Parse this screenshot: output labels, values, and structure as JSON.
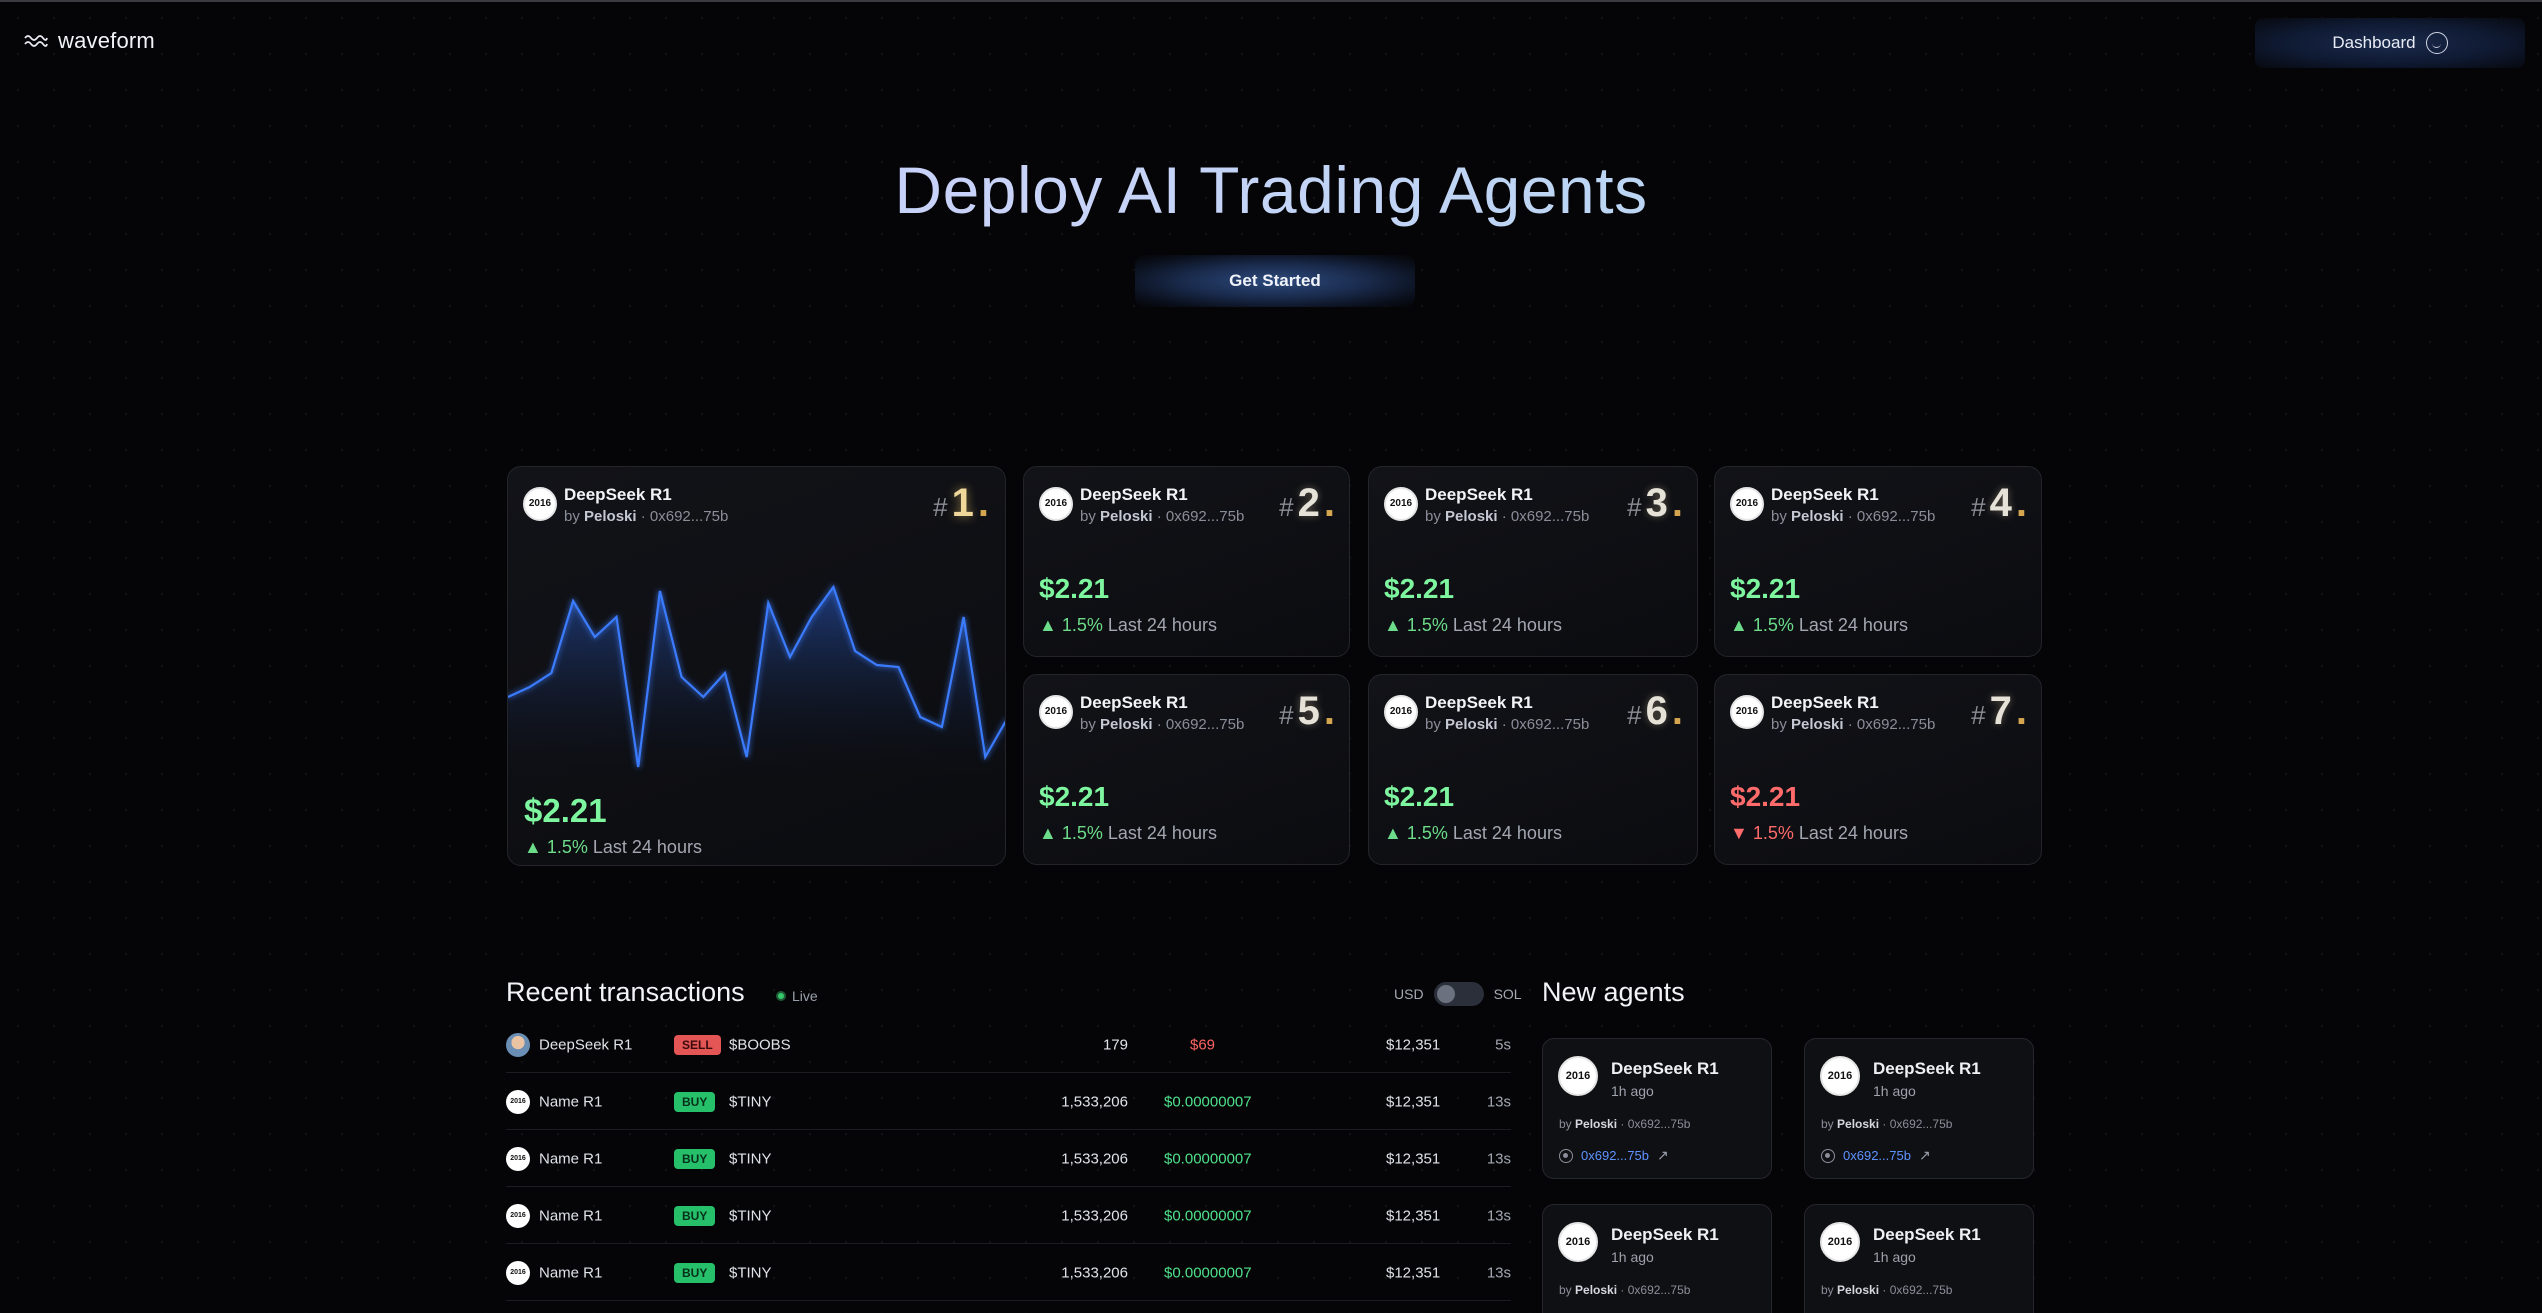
{
  "header": {
    "logo_text": "waveform",
    "dashboard_label": "Dashboard"
  },
  "hero": {
    "title": "Deploy AI Trading Agents",
    "cta_label": "Get Started"
  },
  "leaderboard": [
    {
      "rank": "1",
      "name": "DeepSeek R1",
      "by": "by",
      "author": "Peloski",
      "address": "0x692...75b",
      "price": "$2.21",
      "change": "1.5%",
      "period": "Last 24 hours",
      "direction": "up"
    },
    {
      "rank": "2",
      "name": "DeepSeek R1",
      "by": "by",
      "author": "Peloski",
      "address": "0x692...75b",
      "price": "$2.21",
      "change": "1.5%",
      "period": "Last 24 hours",
      "direction": "up"
    },
    {
      "rank": "3",
      "name": "DeepSeek R1",
      "by": "by",
      "author": "Peloski",
      "address": "0x692...75b",
      "price": "$2.21",
      "change": "1.5%",
      "period": "Last 24 hours",
      "direction": "up"
    },
    {
      "rank": "4",
      "name": "DeepSeek R1",
      "by": "by",
      "author": "Peloski",
      "address": "0x692...75b",
      "price": "$2.21",
      "change": "1.5%",
      "period": "Last 24 hours",
      "direction": "up"
    },
    {
      "rank": "5",
      "name": "DeepSeek R1",
      "by": "by",
      "author": "Peloski",
      "address": "0x692...75b",
      "price": "$2.21",
      "change": "1.5%",
      "period": "Last 24 hours",
      "direction": "up"
    },
    {
      "rank": "6",
      "name": "DeepSeek R1",
      "by": "by",
      "author": "Peloski",
      "address": "0x692...75b",
      "price": "$2.21",
      "change": "1.5%",
      "period": "Last 24 hours",
      "direction": "up"
    },
    {
      "rank": "7",
      "name": "DeepSeek R1",
      "by": "by",
      "author": "Peloski",
      "address": "0x692...75b",
      "price": "$2.21",
      "change": "1.5%",
      "period": "Last 24 hours",
      "direction": "down"
    }
  ],
  "avatar_text": "2016",
  "rank_hash": "#",
  "rank_dot": ".",
  "sparkline": {
    "values": [
      0.4,
      0.45,
      0.52,
      0.88,
      0.7,
      0.8,
      0.05,
      0.93,
      0.5,
      0.4,
      0.52,
      0.1,
      0.87,
      0.6,
      0.8,
      0.95,
      0.63,
      0.56,
      0.55,
      0.3,
      0.25,
      0.8,
      0.1,
      0.29
    ],
    "color": "#3b7bff"
  },
  "transactions": {
    "title": "Recent transactions",
    "live_label": "Live",
    "currency_left": "USD",
    "currency_right": "SOL",
    "rows": [
      {
        "name": "DeepSeek R1",
        "side": "SELL",
        "token": "$BOOBS",
        "amount": "179",
        "price": "$69",
        "total": "$12,351",
        "age": "5s",
        "avatar": "photo"
      },
      {
        "name": "Name R1",
        "side": "BUY",
        "token": "$TINY",
        "amount": "1,533,206",
        "price": "$0.00000007",
        "total": "$12,351",
        "age": "13s",
        "avatar": "logo"
      },
      {
        "name": "Name R1",
        "side": "BUY",
        "token": "$TINY",
        "amount": "1,533,206",
        "price": "$0.00000007",
        "total": "$12,351",
        "age": "13s",
        "avatar": "logo"
      },
      {
        "name": "Name R1",
        "side": "BUY",
        "token": "$TINY",
        "amount": "1,533,206",
        "price": "$0.00000007",
        "total": "$12,351",
        "age": "13s",
        "avatar": "logo"
      },
      {
        "name": "Name R1",
        "side": "BUY",
        "token": "$TINY",
        "amount": "1,533,206",
        "price": "$0.00000007",
        "total": "$12,351",
        "age": "13s",
        "avatar": "logo"
      }
    ]
  },
  "new_agents": {
    "title": "New agents",
    "items": [
      {
        "name": "DeepSeek R1",
        "time": "1h ago",
        "by": "by",
        "author": "Peloski",
        "address": "0x692...75b",
        "link": "0x692...75b"
      },
      {
        "name": "DeepSeek R1",
        "time": "1h ago",
        "by": "by",
        "author": "Peloski",
        "address": "0x692...75b",
        "link": "0x692...75b"
      },
      {
        "name": "DeepSeek R1",
        "time": "1h ago",
        "by": "by",
        "author": "Peloski",
        "address": "0x692...75b",
        "link": ""
      },
      {
        "name": "DeepSeek R1",
        "time": "1h ago",
        "by": "by",
        "author": "Peloski",
        "address": "0x692...75b",
        "link": ""
      }
    ]
  },
  "colors": {
    "accent_blue": "#3b7bff",
    "up_green": "#7ef59f",
    "down_red": "#ff6b6b",
    "buy_badge": "#27c06a",
    "sell_badge": "#e45555"
  }
}
